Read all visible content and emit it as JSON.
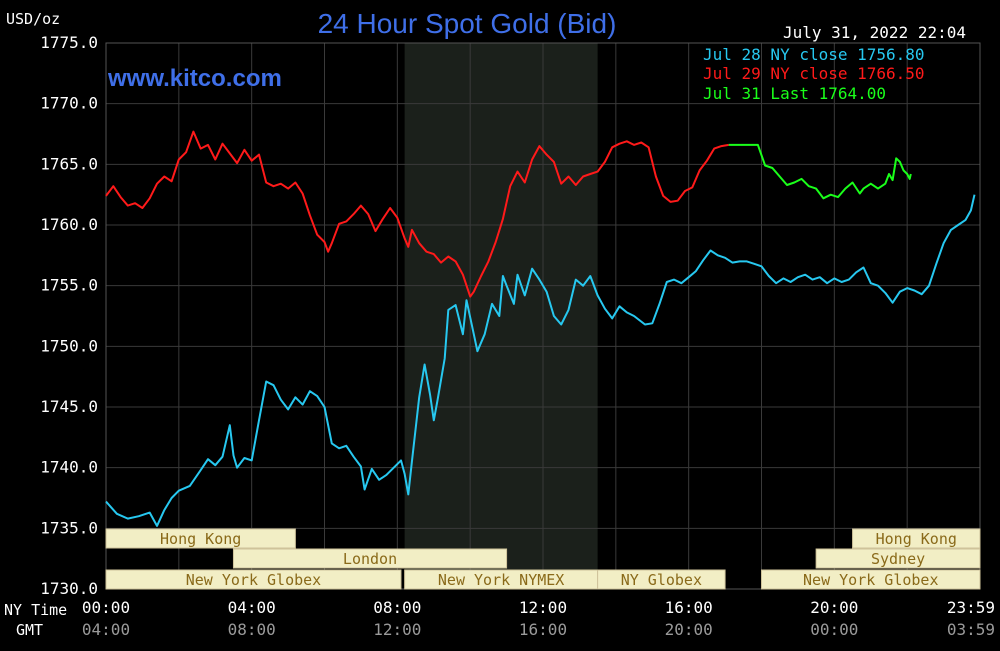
{
  "title": "24 Hour Spot Gold (Bid)",
  "unit_label": "USD/oz",
  "watermark": "www.kitco.com",
  "timestamp": "July 31, 2022 22:04",
  "colors": {
    "background": "#000000",
    "grid": "#3a3a3a",
    "title": "#3f6fe8",
    "jul28": "#27c8f0",
    "jul29": "#ff1a1a",
    "jul31": "#1aff1a",
    "session_fill": "#f2eec5",
    "session_text": "#8a6a1a",
    "shade": "#1b201b"
  },
  "legend": [
    {
      "label": "Jul 28 NY close 1756.80",
      "color": "#27c8f0"
    },
    {
      "label": "Jul 29 NY close 1766.50",
      "color": "#ff1a1a"
    },
    {
      "label": "Jul 31 Last 1764.00",
      "color": "#1aff1a"
    }
  ],
  "axis": {
    "ny_time_label": "NY Time",
    "gmt_label": "GMT",
    "ny_ticks": [
      "00:00",
      "04:00",
      "08:00",
      "12:00",
      "16:00",
      "20:00",
      "23:59"
    ],
    "gmt_ticks": [
      "04:00",
      "08:00",
      "12:00",
      "16:00",
      "20:00",
      "00:00",
      "03:59"
    ]
  },
  "sessions": [
    {
      "label": "Hong Kong",
      "start": 0.0,
      "end": 5.2
    },
    {
      "label": "London",
      "start": 3.5,
      "end": 11.0
    },
    {
      "label": "New York Globex",
      "start": 0.0,
      "end": 8.1
    },
    {
      "label": "New York NYMEX",
      "start": 8.2,
      "end": 13.5
    },
    {
      "label": "NY Globex",
      "start": 13.5,
      "end": 17.0
    },
    {
      "label": "Hong Kong",
      "start": 20.5,
      "end": 24.0
    },
    {
      "label": "Sydney",
      "start": 19.5,
      "end": 24.0
    },
    {
      "label": "New York Globex",
      "start": 18.0,
      "end": 24.0
    }
  ],
  "chart_data": {
    "type": "line",
    "title": "24 Hour Spot Gold (Bid)",
    "xlabel": "NY Time",
    "ylabel": "USD/oz",
    "xlim": [
      0,
      24
    ],
    "ylim": [
      1730,
      1775
    ],
    "yticks": [
      1775.0,
      1770.0,
      1765.0,
      1760.0,
      1755.0,
      1750.0,
      1745.0,
      1740.0,
      1735.0,
      1730.0
    ],
    "shaded_range": [
      8.2,
      13.5
    ],
    "series": [
      {
        "name": "Jul 28 NY close 1756.80",
        "color": "#27c8f0",
        "points": [
          [
            0.0,
            1737.2
          ],
          [
            0.3,
            1736.2
          ],
          [
            0.6,
            1735.8
          ],
          [
            0.9,
            1736.0
          ],
          [
            1.2,
            1736.3
          ],
          [
            1.4,
            1735.2
          ],
          [
            1.6,
            1736.5
          ],
          [
            1.8,
            1737.5
          ],
          [
            2.0,
            1738.1
          ],
          [
            2.3,
            1738.5
          ],
          [
            2.6,
            1739.8
          ],
          [
            2.8,
            1740.7
          ],
          [
            3.0,
            1740.2
          ],
          [
            3.2,
            1740.9
          ],
          [
            3.4,
            1743.5
          ],
          [
            3.5,
            1741.0
          ],
          [
            3.6,
            1740.0
          ],
          [
            3.8,
            1740.8
          ],
          [
            4.0,
            1740.6
          ],
          [
            4.2,
            1743.9
          ],
          [
            4.4,
            1747.1
          ],
          [
            4.6,
            1746.8
          ],
          [
            4.8,
            1745.6
          ],
          [
            5.0,
            1744.8
          ],
          [
            5.2,
            1745.8
          ],
          [
            5.4,
            1745.2
          ],
          [
            5.6,
            1746.3
          ],
          [
            5.8,
            1745.9
          ],
          [
            6.0,
            1745.0
          ],
          [
            6.2,
            1742.0
          ],
          [
            6.4,
            1741.6
          ],
          [
            6.6,
            1741.8
          ],
          [
            6.8,
            1740.9
          ],
          [
            7.0,
            1740.1
          ],
          [
            7.1,
            1738.2
          ],
          [
            7.3,
            1739.9
          ],
          [
            7.5,
            1739.0
          ],
          [
            7.7,
            1739.4
          ],
          [
            7.9,
            1740.0
          ],
          [
            8.1,
            1740.6
          ],
          [
            8.2,
            1739.5
          ],
          [
            8.3,
            1737.8
          ],
          [
            8.4,
            1740.5
          ],
          [
            8.6,
            1745.8
          ],
          [
            8.75,
            1748.5
          ],
          [
            8.9,
            1746.0
          ],
          [
            9.0,
            1743.9
          ],
          [
            9.1,
            1745.5
          ],
          [
            9.3,
            1749.0
          ],
          [
            9.4,
            1753.0
          ],
          [
            9.6,
            1753.4
          ],
          [
            9.8,
            1751.0
          ],
          [
            9.9,
            1753.8
          ],
          [
            10.1,
            1751.0
          ],
          [
            10.2,
            1749.6
          ],
          [
            10.4,
            1751.0
          ],
          [
            10.6,
            1753.5
          ],
          [
            10.8,
            1752.5
          ],
          [
            10.9,
            1755.8
          ],
          [
            11.0,
            1755.0
          ],
          [
            11.2,
            1753.5
          ],
          [
            11.3,
            1755.9
          ],
          [
            11.5,
            1754.2
          ],
          [
            11.7,
            1756.4
          ],
          [
            11.9,
            1755.5
          ],
          [
            12.1,
            1754.5
          ],
          [
            12.3,
            1752.5
          ],
          [
            12.5,
            1751.8
          ],
          [
            12.7,
            1753.0
          ],
          [
            12.9,
            1755.5
          ],
          [
            13.1,
            1755.0
          ],
          [
            13.3,
            1755.8
          ],
          [
            13.5,
            1754.2
          ],
          [
            13.7,
            1753.1
          ],
          [
            13.9,
            1752.3
          ],
          [
            14.1,
            1753.3
          ],
          [
            14.3,
            1752.8
          ],
          [
            14.5,
            1752.5
          ],
          [
            14.8,
            1751.8
          ],
          [
            15.0,
            1751.9
          ],
          [
            15.2,
            1753.5
          ],
          [
            15.4,
            1755.3
          ],
          [
            15.6,
            1755.5
          ],
          [
            15.8,
            1755.2
          ],
          [
            16.0,
            1755.7
          ],
          [
            16.2,
            1756.2
          ],
          [
            16.4,
            1757.1
          ],
          [
            16.6,
            1757.9
          ],
          [
            16.8,
            1757.5
          ],
          [
            17.0,
            1757.3
          ],
          [
            17.2,
            1756.9
          ],
          [
            17.4,
            1757.0
          ],
          [
            17.6,
            1757.0
          ],
          [
            17.8,
            1756.8
          ],
          [
            18.0,
            1756.6
          ],
          [
            18.2,
            1755.8
          ],
          [
            18.4,
            1755.2
          ],
          [
            18.6,
            1755.6
          ],
          [
            18.8,
            1755.3
          ],
          [
            19.0,
            1755.7
          ],
          [
            19.2,
            1755.9
          ],
          [
            19.4,
            1755.5
          ],
          [
            19.6,
            1755.7
          ],
          [
            19.8,
            1755.2
          ],
          [
            20.0,
            1755.6
          ],
          [
            20.2,
            1755.3
          ],
          [
            20.4,
            1755.5
          ],
          [
            20.6,
            1756.1
          ],
          [
            20.8,
            1756.5
          ],
          [
            21.0,
            1755.2
          ],
          [
            21.2,
            1755.0
          ],
          [
            21.4,
            1754.4
          ],
          [
            21.6,
            1753.6
          ],
          [
            21.8,
            1754.5
          ],
          [
            22.0,
            1754.8
          ],
          [
            22.2,
            1754.6
          ],
          [
            22.4,
            1754.3
          ],
          [
            22.6,
            1755.0
          ],
          [
            22.8,
            1756.8
          ],
          [
            23.0,
            1758.5
          ],
          [
            23.2,
            1759.6
          ],
          [
            23.4,
            1760.0
          ],
          [
            23.6,
            1760.4
          ],
          [
            23.75,
            1761.2
          ],
          [
            23.85,
            1762.5
          ]
        ]
      },
      {
        "name": "Jul 29 NY close 1766.50",
        "color": "#ff1a1a",
        "points": [
          [
            0.0,
            1762.4
          ],
          [
            0.2,
            1763.2
          ],
          [
            0.4,
            1762.3
          ],
          [
            0.6,
            1761.6
          ],
          [
            0.8,
            1761.8
          ],
          [
            1.0,
            1761.4
          ],
          [
            1.2,
            1762.2
          ],
          [
            1.4,
            1763.4
          ],
          [
            1.6,
            1764.0
          ],
          [
            1.8,
            1763.6
          ],
          [
            2.0,
            1765.4
          ],
          [
            2.2,
            1766.0
          ],
          [
            2.4,
            1767.7
          ],
          [
            2.6,
            1766.3
          ],
          [
            2.8,
            1766.6
          ],
          [
            3.0,
            1765.4
          ],
          [
            3.2,
            1766.7
          ],
          [
            3.4,
            1765.9
          ],
          [
            3.6,
            1765.1
          ],
          [
            3.8,
            1766.2
          ],
          [
            4.0,
            1765.3
          ],
          [
            4.2,
            1765.8
          ],
          [
            4.4,
            1763.5
          ],
          [
            4.6,
            1763.2
          ],
          [
            4.8,
            1763.4
          ],
          [
            5.0,
            1763.0
          ],
          [
            5.2,
            1763.5
          ],
          [
            5.4,
            1762.6
          ],
          [
            5.6,
            1760.8
          ],
          [
            5.8,
            1759.2
          ],
          [
            6.0,
            1758.6
          ],
          [
            6.1,
            1757.8
          ],
          [
            6.2,
            1758.5
          ],
          [
            6.4,
            1760.1
          ],
          [
            6.6,
            1760.3
          ],
          [
            6.8,
            1760.9
          ],
          [
            7.0,
            1761.6
          ],
          [
            7.2,
            1760.9
          ],
          [
            7.4,
            1759.5
          ],
          [
            7.6,
            1760.5
          ],
          [
            7.8,
            1761.4
          ],
          [
            8.0,
            1760.6
          ],
          [
            8.2,
            1758.9
          ],
          [
            8.3,
            1758.2
          ],
          [
            8.4,
            1759.6
          ],
          [
            8.6,
            1758.5
          ],
          [
            8.8,
            1757.8
          ],
          [
            9.0,
            1757.6
          ],
          [
            9.2,
            1756.9
          ],
          [
            9.4,
            1757.4
          ],
          [
            9.6,
            1757.0
          ],
          [
            9.8,
            1755.9
          ],
          [
            10.0,
            1754.1
          ],
          [
            10.1,
            1754.5
          ],
          [
            10.3,
            1755.8
          ],
          [
            10.5,
            1757.0
          ],
          [
            10.7,
            1758.6
          ],
          [
            10.9,
            1760.5
          ],
          [
            11.1,
            1763.2
          ],
          [
            11.3,
            1764.4
          ],
          [
            11.5,
            1763.5
          ],
          [
            11.7,
            1765.4
          ],
          [
            11.9,
            1766.5
          ],
          [
            12.1,
            1765.8
          ],
          [
            12.3,
            1765.2
          ],
          [
            12.5,
            1763.4
          ],
          [
            12.7,
            1764.0
          ],
          [
            12.9,
            1763.3
          ],
          [
            13.1,
            1764.0
          ],
          [
            13.3,
            1764.2
          ],
          [
            13.5,
            1764.4
          ],
          [
            13.7,
            1765.2
          ],
          [
            13.9,
            1766.4
          ],
          [
            14.1,
            1766.7
          ],
          [
            14.3,
            1766.9
          ],
          [
            14.5,
            1766.6
          ],
          [
            14.7,
            1766.8
          ],
          [
            14.9,
            1766.4
          ],
          [
            15.1,
            1764.0
          ],
          [
            15.3,
            1762.4
          ],
          [
            15.5,
            1761.9
          ],
          [
            15.7,
            1762.0
          ],
          [
            15.9,
            1762.8
          ],
          [
            16.1,
            1763.1
          ],
          [
            16.3,
            1764.5
          ],
          [
            16.5,
            1765.3
          ],
          [
            16.7,
            1766.3
          ],
          [
            16.9,
            1766.5
          ],
          [
            17.1,
            1766.6
          ]
        ]
      },
      {
        "name": "Jul 31 Last 1764.00",
        "color": "#1aff1a",
        "points": [
          [
            17.1,
            1766.6
          ],
          [
            17.5,
            1766.6
          ],
          [
            17.9,
            1766.6
          ],
          [
            18.1,
            1764.9
          ],
          [
            18.3,
            1764.7
          ],
          [
            18.5,
            1764.0
          ],
          [
            18.7,
            1763.3
          ],
          [
            18.9,
            1763.5
          ],
          [
            19.1,
            1763.8
          ],
          [
            19.3,
            1763.2
          ],
          [
            19.5,
            1763.0
          ],
          [
            19.7,
            1762.2
          ],
          [
            19.9,
            1762.5
          ],
          [
            20.1,
            1762.3
          ],
          [
            20.3,
            1763.0
          ],
          [
            20.5,
            1763.5
          ],
          [
            20.7,
            1762.6
          ],
          [
            20.8,
            1763.0
          ],
          [
            21.0,
            1763.4
          ],
          [
            21.2,
            1763.0
          ],
          [
            21.4,
            1763.4
          ],
          [
            21.5,
            1764.2
          ],
          [
            21.6,
            1763.7
          ],
          [
            21.7,
            1765.5
          ],
          [
            21.8,
            1765.2
          ],
          [
            21.9,
            1764.5
          ],
          [
            22.0,
            1764.2
          ],
          [
            22.07,
            1763.8
          ],
          [
            22.1,
            1764.2
          ]
        ]
      }
    ]
  }
}
